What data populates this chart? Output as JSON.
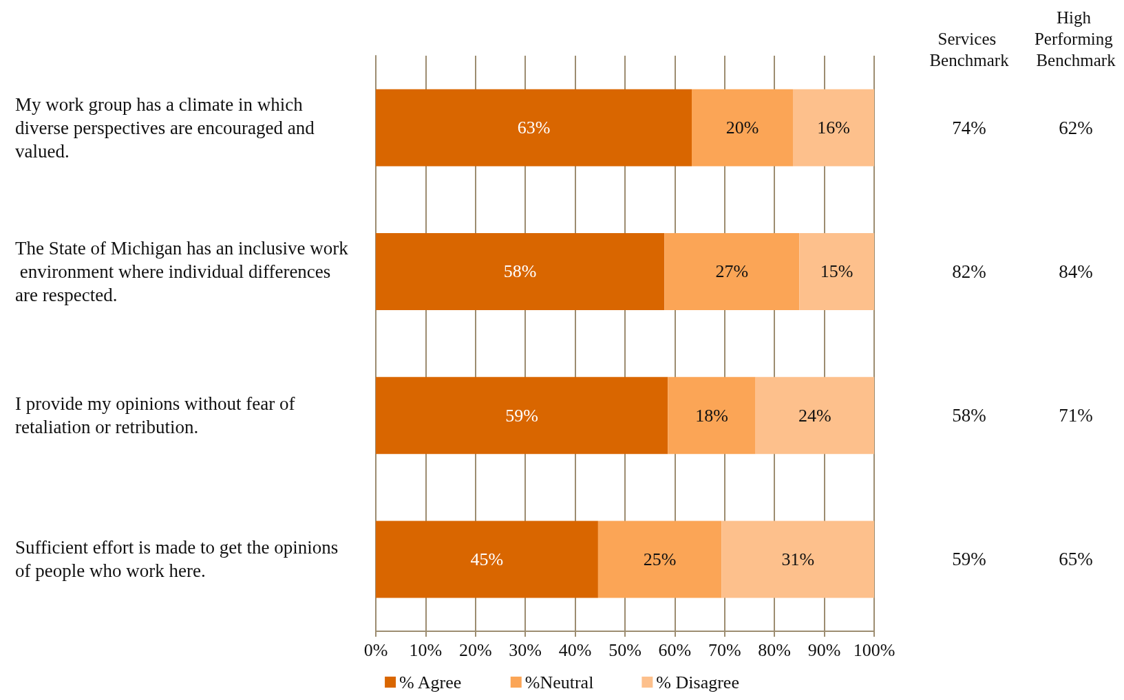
{
  "chart_data": {
    "type": "bar",
    "orientation": "horizontal",
    "stacked": true,
    "categories": [
      "My work group has a climate in which diverse perspectives are encouraged and valued.",
      "The State of Michigan has an inclusive work environment where individual differences are respected.",
      "I provide my opinions without fear of retaliation or retribution.",
      "Sufficient effort is made to get the opinions of people who work here."
    ],
    "series": [
      {
        "name": "% Agree",
        "color": "#d96600",
        "values": [
          63.4,
          57.9,
          58.6,
          44.6
        ],
        "value_labels": [
          "63%",
          "58%",
          "59%",
          "45%"
        ]
      },
      {
        "name": "%Neutral",
        "color": "#fba556",
        "values": [
          20.3,
          27.1,
          17.6,
          24.8
        ],
        "value_labels": [
          "20%",
          "27%",
          "18%",
          "25%"
        ]
      },
      {
        "name": "% Disagree",
        "color": "#fdc08c",
        "values": [
          16.3,
          15.0,
          23.8,
          30.6
        ],
        "value_labels": [
          "16%",
          "15%",
          "24%",
          "31%"
        ]
      }
    ],
    "xlim": [
      0,
      100
    ],
    "xticks": [
      {
        "value": 0,
        "label": "0%"
      },
      {
        "value": 10,
        "label": "10%"
      },
      {
        "value": 20,
        "label": "20%"
      },
      {
        "value": 30,
        "label": "30%"
      },
      {
        "value": 40,
        "label": "40%"
      },
      {
        "value": 50,
        "label": "50%"
      },
      {
        "value": 60,
        "label": "60%"
      },
      {
        "value": 70,
        "label": "70%"
      },
      {
        "value": 80,
        "label": "80%"
      },
      {
        "value": 90,
        "label": "90%"
      },
      {
        "value": 100,
        "label": "100%"
      }
    ],
    "grid": "x",
    "legend": "bottom",
    "annotations": [
      "Services Benchmark",
      "High Performing Benchmark",
      "74%",
      "62%",
      "82%",
      "84%",
      "58%",
      "71%",
      "59%",
      "65%"
    ]
  }
}
